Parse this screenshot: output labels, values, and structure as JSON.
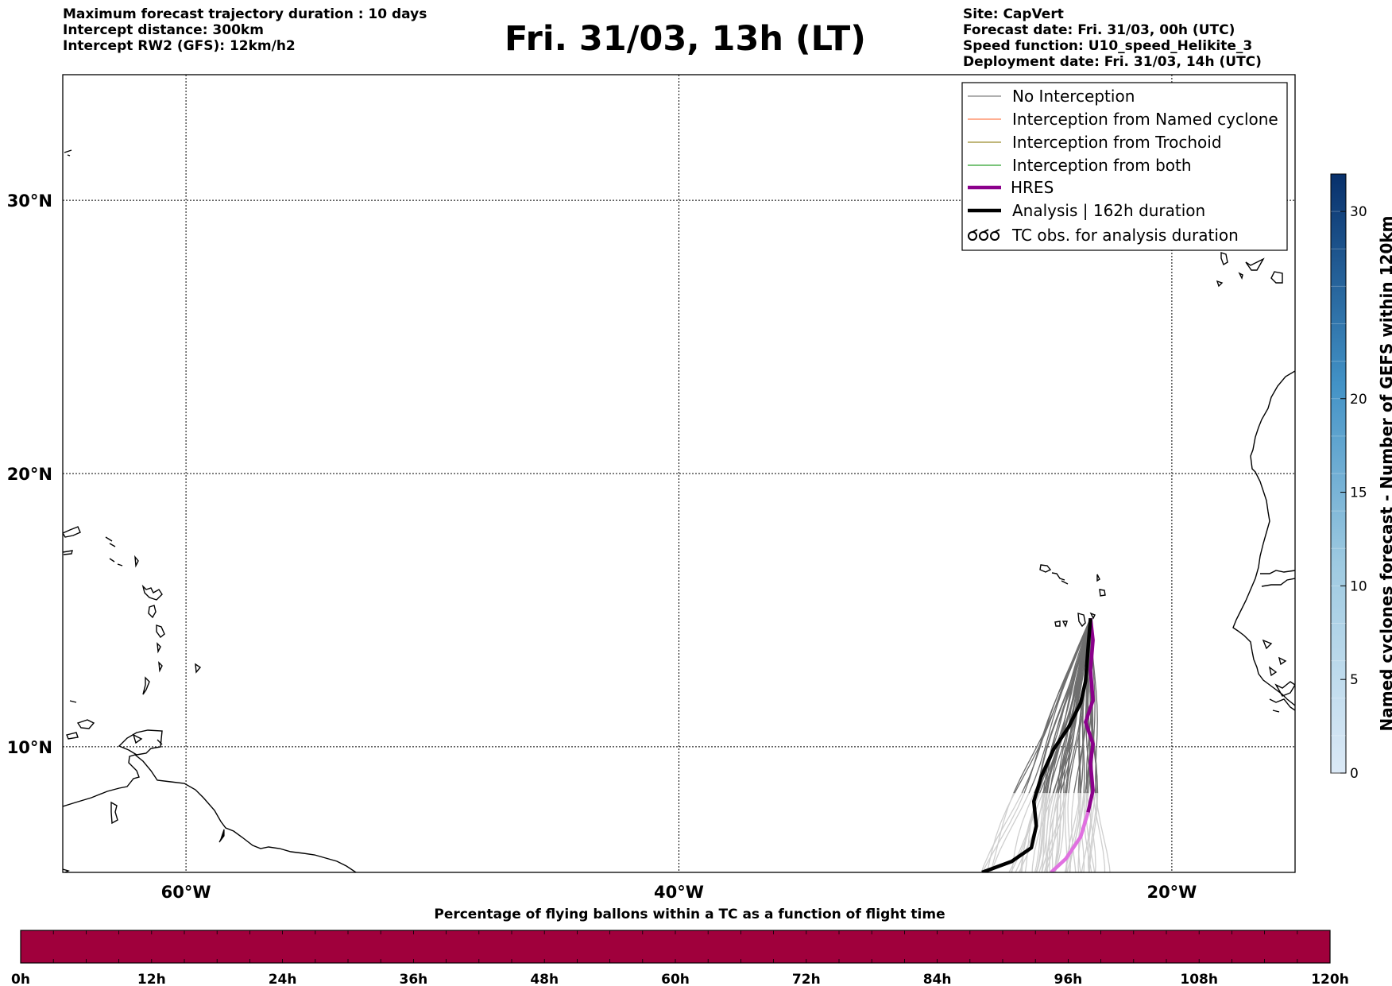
{
  "header": {
    "left_lines": [
      "Maximum forecast trajectory duration : 10 days",
      "Intercept distance: 300km",
      "Intercept RW2 (GFS):  12km/h2"
    ],
    "title": "Fri. 31/03, 13h (LT)",
    "right_lines": [
      "Site: CapVert",
      "Forecast date: Fri. 31/03, 00h (UTC)",
      "Speed function: U10_speed_Helikite_3",
      "Deployment date: Fri. 31/03, 14h (UTC)"
    ]
  },
  "map": {
    "lon_range": [
      -65,
      -15
    ],
    "lat_range": [
      5.4,
      34.6
    ],
    "lat_ticks": [
      {
        "value": 30,
        "label": "30°N"
      },
      {
        "value": 20,
        "label": "20°N"
      },
      {
        "value": 10,
        "label": "10°N"
      }
    ],
    "lon_ticks": [
      {
        "value": -60,
        "label": "60°W"
      },
      {
        "value": -40,
        "label": "40°W"
      },
      {
        "value": -20,
        "label": "20°W"
      }
    ],
    "grid": true,
    "legend_position": "top-right",
    "legend": [
      {
        "label": "No Interception",
        "color": "#808080",
        "style": "thin"
      },
      {
        "label": "Interception from Named cyclone",
        "color": "#ff7f50",
        "style": "thin"
      },
      {
        "label": "Interception from Trochoid",
        "color": "#9b8c2c",
        "style": "thin"
      },
      {
        "label": "Interception from both",
        "color": "#2ca02c",
        "style": "thin"
      },
      {
        "label": "HRES",
        "color": "#8b008b",
        "style": "thick"
      },
      {
        "label": "Analysis | 162h duration",
        "color": "#000000",
        "style": "thick"
      },
      {
        "label": "TC obs. for analysis duration",
        "color": "#000000",
        "style": "symbol"
      }
    ],
    "release_site": {
      "lon": -23.3,
      "lat": 14.7
    },
    "analysis_track": [
      [
        -23.3,
        14.7
      ],
      [
        -23.4,
        13.6
      ],
      [
        -23.5,
        12.4
      ],
      [
        -23.7,
        11.6
      ],
      [
        -24.2,
        10.7
      ],
      [
        -24.8,
        9.9
      ],
      [
        -25.3,
        8.9
      ],
      [
        -25.6,
        8.0
      ],
      [
        -25.5,
        7.1
      ],
      [
        -25.7,
        6.3
      ],
      [
        -26.5,
        5.8
      ],
      [
        -27.7,
        5.4
      ]
    ],
    "hres_track": [
      [
        -23.3,
        14.7
      ],
      [
        -23.2,
        13.9
      ],
      [
        -23.3,
        12.8
      ],
      [
        -23.2,
        11.7
      ],
      [
        -23.5,
        10.9
      ],
      [
        -23.2,
        10.1
      ],
      [
        -23.3,
        9.4
      ],
      [
        -23.2,
        8.4
      ],
      [
        -23.4,
        7.6
      ],
      [
        -23.7,
        6.7
      ],
      [
        -24.3,
        5.9
      ],
      [
        -24.9,
        5.4
      ]
    ],
    "ensemble_track_count": 50
  },
  "right_colorbar": {
    "label": "Named cyclones forecast - Number of GEFS within 120km",
    "range": [
      0,
      32
    ],
    "ticks": [
      0,
      5,
      10,
      15,
      20,
      30
    ],
    "color_low": "#dbe9f6",
    "color_high": "#08306b"
  },
  "bottom_colorbar": {
    "title": "Percentage of flying ballons within a TC as a function of flight time",
    "color": "#a0003c",
    "ticks": [
      "0h",
      "12h",
      "24h",
      "36h",
      "48h",
      "60h",
      "72h",
      "84h",
      "96h",
      "108h",
      "120h"
    ]
  }
}
